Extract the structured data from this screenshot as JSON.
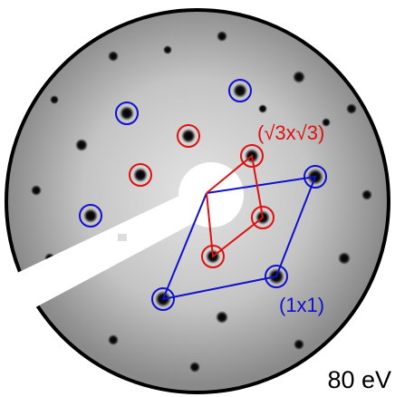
{
  "annotations": {
    "sqrt3_label": "(√3x√3)",
    "unit_cell_label": "(1x1)",
    "energy_label": "80 eV"
  }
}
